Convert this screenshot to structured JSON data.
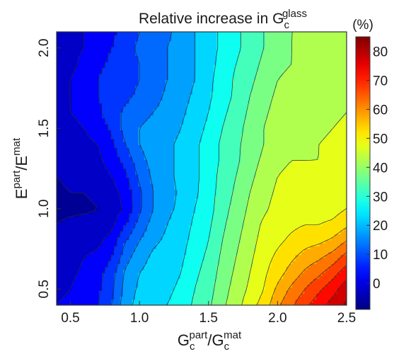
{
  "chart_data": {
    "type": "heatmap",
    "title": {
      "prefix": "Relative increase in G",
      "subscript": "c",
      "superscript": "glass"
    },
    "xlabel": {
      "num_base": "G",
      "num_sup": "part",
      "num_sub": "c",
      "slash": "/",
      "den_base": "G",
      "den_sup": "mat",
      "den_sub": "c"
    },
    "ylabel": {
      "num_base": "E",
      "num_sup": "part",
      "slash": "/",
      "den_base": "E",
      "den_sup": "mat"
    },
    "xlim": [
      0.4,
      2.5
    ],
    "ylim": [
      0.4,
      2.1
    ],
    "x_ticks": [
      0.5,
      1.0,
      1.5,
      2.0,
      2.5
    ],
    "x_tick_labels": [
      "0.5",
      "1.0",
      "1.5",
      "2.0",
      "2.5"
    ],
    "y_ticks": [
      0.5,
      1.0,
      1.5,
      2.0
    ],
    "y_tick_labels": [
      "0.5",
      "1.0",
      "1.5",
      "2.0"
    ],
    "colorbar": {
      "unit_label": "(%)",
      "range": [
        -9,
        85
      ],
      "ticks": [
        0,
        10,
        20,
        30,
        40,
        50,
        60,
        70,
        80
      ],
      "tick_labels": [
        "0",
        "10",
        "20",
        "30",
        "40",
        "50",
        "60",
        "70",
        "80"
      ],
      "colormap": "jet"
    },
    "contour_levels": [
      -5,
      0,
      5,
      10,
      15,
      20,
      25,
      30,
      35,
      40,
      45,
      50,
      55,
      60,
      65,
      70,
      75,
      80
    ],
    "x": [
      0.4,
      0.5,
      0.6,
      0.7,
      0.8,
      0.9,
      1.0,
      1.1,
      1.2,
      1.3,
      1.4,
      1.5,
      1.6,
      1.7,
      1.8,
      1.9,
      2.0,
      2.1,
      2.2,
      2.3,
      2.4,
      2.5
    ],
    "y": [
      0.4,
      0.5,
      0.6,
      0.7,
      0.8,
      0.9,
      1.0,
      1.1,
      1.2,
      1.3,
      1.4,
      1.5,
      1.6,
      1.7,
      1.8,
      1.9,
      2.0,
      2.1
    ],
    "z": [
      [
        0,
        1,
        3,
        5,
        10,
        18,
        22,
        24,
        25,
        27,
        31,
        34,
        39,
        43,
        48,
        52,
        59,
        64,
        69,
        73,
        77,
        81
      ],
      [
        -1,
        0,
        2,
        4,
        9,
        17,
        21,
        23,
        24,
        26,
        30,
        33,
        38,
        42,
        46,
        50,
        56,
        61,
        65,
        69,
        73,
        78
      ],
      [
        -2,
        -1,
        1,
        3,
        8,
        16,
        20,
        22,
        23,
        25,
        29,
        32,
        37,
        41,
        45,
        49,
        53,
        57,
        61,
        64,
        68,
        73
      ],
      [
        -3,
        -2,
        0,
        1,
        5,
        13,
        18,
        21,
        22,
        24,
        28,
        31,
        36,
        40,
        44,
        48,
        51,
        54,
        57,
        59,
        62,
        67
      ],
      [
        -4,
        -3,
        -2,
        -1,
        2,
        10,
        15,
        19,
        21,
        23,
        27,
        30,
        35,
        39,
        43,
        47,
        49,
        51,
        53,
        54,
        56,
        60
      ],
      [
        -5,
        -4,
        -3,
        -3,
        -1,
        5,
        12,
        17,
        20,
        22,
        26,
        29,
        34,
        38,
        42,
        46,
        48,
        49,
        50,
        50,
        51,
        54
      ],
      [
        -6,
        -6,
        -6,
        -5,
        -3,
        1,
        9,
        15,
        19,
        21,
        25,
        28,
        33,
        37,
        41,
        44,
        47,
        48,
        48,
        48,
        48,
        50
      ],
      [
        -6,
        -5,
        -5,
        -4,
        -2,
        2,
        9,
        15,
        18,
        21,
        24,
        28,
        32,
        36,
        40,
        43,
        46,
        47,
        47,
        47,
        47,
        48
      ],
      [
        -5,
        -4,
        -3,
        -2,
        0,
        4,
        11,
        16,
        19,
        21,
        24,
        27,
        32,
        35,
        39,
        42,
        45,
        46,
        46,
        46,
        46,
        47
      ],
      [
        -4,
        -3,
        -2,
        -1,
        2,
        7,
        13,
        17,
        19,
        21,
        24,
        27,
        31,
        34,
        38,
        41,
        44,
        45,
        45,
        45,
        46,
        47
      ],
      [
        -3,
        -2,
        -1,
        0,
        4,
        10,
        15,
        18,
        19,
        21,
        24,
        27,
        31,
        34,
        37,
        40,
        43,
        44,
        44,
        45,
        46,
        47
      ],
      [
        -2,
        -1,
        0,
        2,
        6,
        12,
        15,
        17,
        18,
        20,
        23,
        26,
        30,
        33,
        37,
        40,
        43,
        44,
        44,
        44,
        45,
        46
      ],
      [
        -1,
        0,
        1,
        4,
        8,
        11,
        13,
        15,
        17,
        19,
        22,
        25,
        29,
        32,
        36,
        39,
        42,
        43,
        43,
        43,
        44,
        45
      ],
      [
        -1,
        0,
        2,
        5,
        7,
        9,
        11,
        13,
        16,
        18,
        21,
        24,
        28,
        31,
        35,
        38,
        41,
        42,
        42,
        42,
        43,
        44
      ],
      [
        -1,
        0,
        2,
        5,
        7,
        8,
        10,
        12,
        15,
        17,
        20,
        24,
        27,
        31,
        34,
        37,
        40,
        41,
        41,
        41,
        42,
        43
      ],
      [
        -2,
        -1,
        1,
        4,
        6,
        8,
        10,
        12,
        15,
        17,
        20,
        23,
        27,
        30,
        33,
        36,
        39,
        40,
        41,
        41,
        41,
        42
      ],
      [
        -2,
        -1,
        0,
        3,
        5,
        8,
        11,
        13,
        15,
        17,
        20,
        23,
        26,
        29,
        32,
        35,
        38,
        40,
        41,
        40,
        41,
        42
      ],
      [
        -2,
        -1,
        0,
        2,
        4,
        7,
        10,
        12,
        14,
        17,
        20,
        23,
        26,
        29,
        32,
        35,
        38,
        40,
        40,
        40,
        41,
        42
      ]
    ]
  }
}
